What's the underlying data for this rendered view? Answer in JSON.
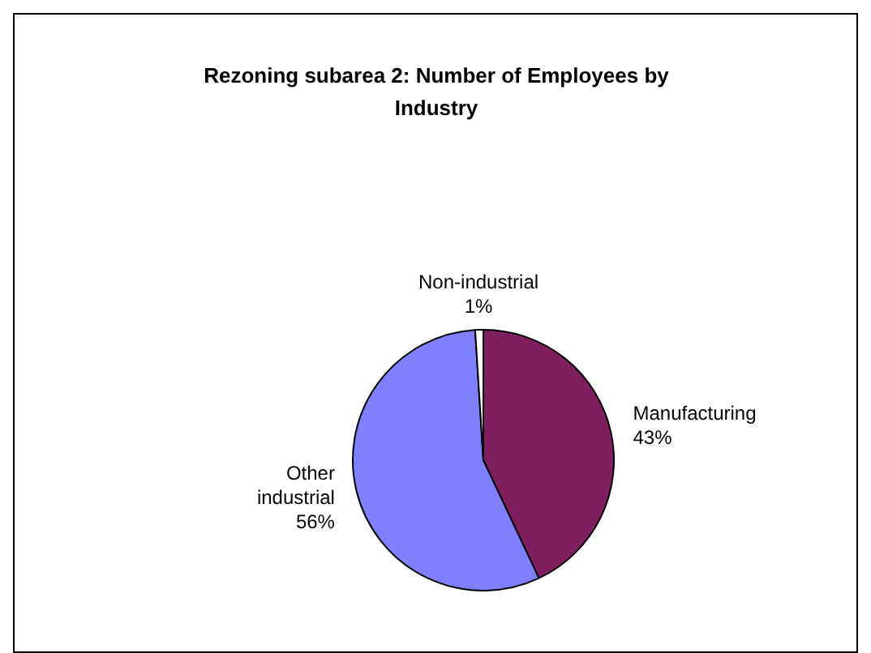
{
  "chart_data": {
    "type": "pie",
    "title": "Rezoning subarea 2: Number of Employees by Industry",
    "categories": [
      "Manufacturing",
      "Other industrial",
      "Non-industrial"
    ],
    "values": [
      43,
      56,
      1
    ],
    "colors": [
      "#7f1f5f",
      "#8080ff",
      "#ffffff"
    ],
    "value_labels": [
      "43%",
      "56%",
      "1%"
    ],
    "legend": false
  }
}
